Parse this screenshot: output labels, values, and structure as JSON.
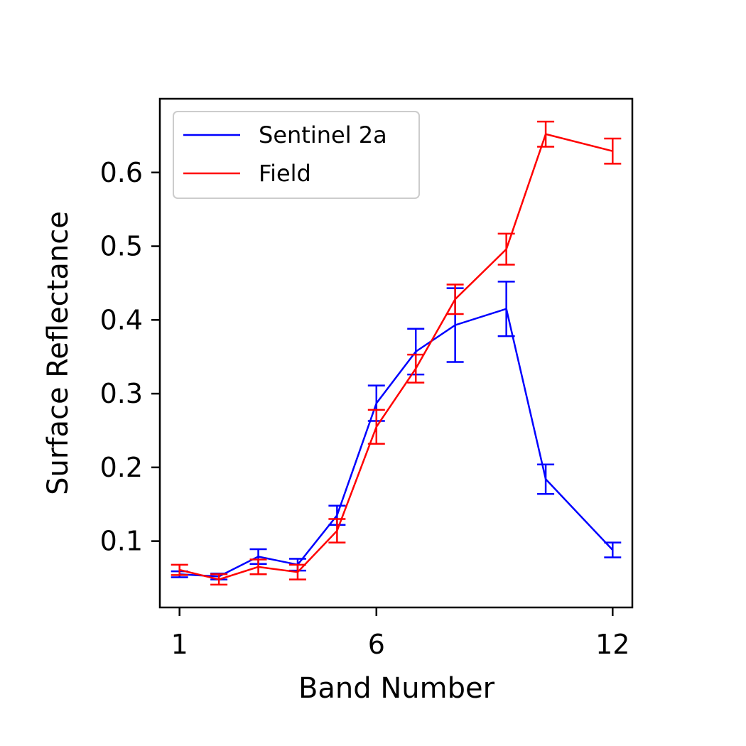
{
  "chart_data": {
    "type": "line",
    "title": "",
    "xlabel": "Band Number",
    "ylabel": "Surface Reflectance",
    "x": [
      1,
      2,
      3,
      4,
      5,
      6,
      7,
      8,
      9,
      10,
      11,
      12
    ],
    "xticks": [
      1,
      6,
      12
    ],
    "xtick_labels": [
      "1",
      "6",
      "12"
    ],
    "xlim": [
      0.5,
      12.5
    ],
    "yticks": [
      0.1,
      0.2,
      0.3,
      0.4,
      0.5,
      0.6
    ],
    "ytick_labels": [
      "0.1",
      "0.2",
      "0.3",
      "0.4",
      "0.5",
      "0.6"
    ],
    "ylim": [
      0.01,
      0.7
    ],
    "grid": false,
    "legend_position": "top-left",
    "series": [
      {
        "name": "Sentinel 2a",
        "color": "#0000ff",
        "values": [
          0.055,
          0.052,
          0.079,
          0.068,
          0.135,
          0.287,
          0.357,
          0.393,
          0.415,
          0.184,
          0.088
        ],
        "x": [
          1,
          2,
          3,
          4,
          5,
          6,
          7,
          8,
          9.3,
          10.3,
          12
        ],
        "errors": [
          0.004,
          0.004,
          0.01,
          0.008,
          0.013,
          0.024,
          0.031,
          0.05,
          0.037,
          0.02,
          0.01
        ]
      },
      {
        "name": "Field",
        "color": "#ff0000",
        "values": [
          0.061,
          0.048,
          0.065,
          0.058,
          0.114,
          0.255,
          0.334,
          0.428,
          0.496,
          0.652,
          0.629
        ],
        "x": [
          1,
          2,
          3,
          4,
          5,
          6,
          7,
          8,
          9.3,
          10.3,
          12
        ],
        "errors": [
          0.007,
          0.007,
          0.01,
          0.01,
          0.016,
          0.023,
          0.019,
          0.02,
          0.021,
          0.017,
          0.017
        ]
      }
    ]
  }
}
